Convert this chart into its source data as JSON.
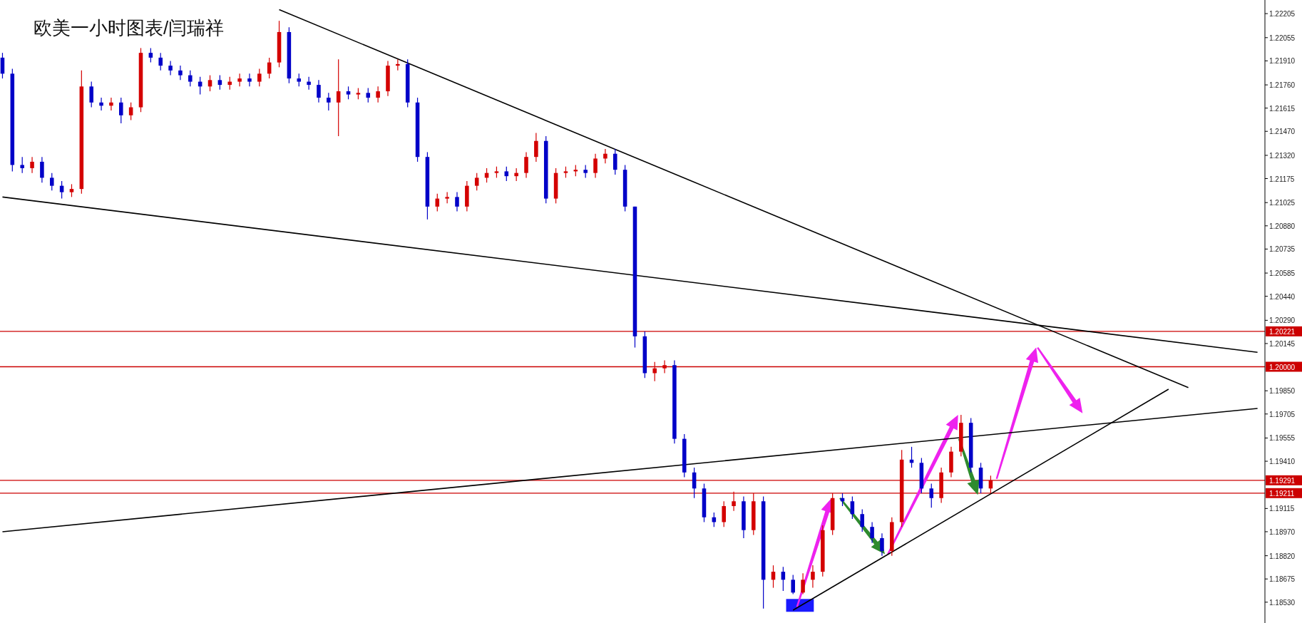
{
  "chart_data": {
    "type": "candlestick",
    "title": "欧美一小时图表/闫瑞祥",
    "tick_labels": "y",
    "categories": [
      null,
      null,
      null,
      null,
      null,
      null,
      null,
      null,
      null,
      null,
      null,
      null,
      null,
      null,
      null,
      null,
      null,
      null,
      null,
      null,
      null,
      null,
      null,
      null,
      null,
      null,
      null,
      null,
      null,
      null,
      null,
      null,
      null,
      null,
      null,
      null,
      null,
      null,
      null,
      null,
      null,
      null,
      null,
      null,
      null,
      null,
      null,
      null,
      null,
      null,
      null,
      null,
      null,
      null,
      null,
      null,
      null,
      null,
      null,
      null,
      null,
      null,
      null,
      null,
      null,
      null,
      null,
      null,
      null,
      null,
      null,
      null,
      null,
      null,
      null,
      null,
      null,
      null,
      null,
      null,
      null,
      null,
      null,
      null,
      null,
      null,
      null,
      null,
      null,
      null,
      null,
      null,
      null,
      null,
      null,
      null,
      null,
      null,
      null,
      null,
      null,
      null,
      null,
      null,
      null,
      null,
      null,
      null,
      null,
      null,
      null,
      null,
      null,
      null,
      null,
      null,
      null,
      null,
      null,
      null,
      null,
      null,
      null,
      null,
      null,
      null,
      null,
      null
    ],
    "ohlc": [
      [
        1.2193,
        1.2196,
        1.218,
        1.2183
      ],
      [
        1.2183,
        1.2186,
        1.2122,
        1.2126
      ],
      [
        1.2126,
        1.2131,
        1.2121,
        1.2124
      ],
      [
        1.2124,
        1.2131,
        1.2121,
        1.2128
      ],
      [
        1.2128,
        1.2131,
        1.2115,
        1.2118
      ],
      [
        1.2118,
        1.2121,
        1.211,
        1.2113
      ],
      [
        1.2113,
        1.2116,
        1.2105,
        1.2109
      ],
      [
        1.2109,
        1.2114,
        1.2106,
        1.2111
      ],
      [
        1.2111,
        1.2185,
        1.2108,
        1.2175
      ],
      [
        1.2175,
        1.2178,
        1.2162,
        1.2165
      ],
      [
        1.2165,
        1.2168,
        1.216,
        1.2163
      ],
      [
        1.2163,
        1.2168,
        1.216,
        1.2165
      ],
      [
        1.2165,
        1.2168,
        1.2152,
        1.2157
      ],
      [
        1.2157,
        1.2165,
        1.2154,
        1.2162
      ],
      [
        1.2162,
        1.2199,
        1.2159,
        1.2196
      ],
      [
        1.2196,
        1.2199,
        1.219,
        1.2193
      ],
      [
        1.2193,
        1.2196,
        1.2185,
        1.2188
      ],
      [
        1.2188,
        1.2191,
        1.2182,
        1.2185
      ],
      [
        1.2185,
        1.2188,
        1.2179,
        1.2182
      ],
      [
        1.2182,
        1.2185,
        1.2175,
        1.2178
      ],
      [
        1.2178,
        1.2181,
        1.217,
        1.2175
      ],
      [
        1.2175,
        1.2182,
        1.2172,
        1.2179
      ],
      [
        1.2179,
        1.2182,
        1.2173,
        1.2176
      ],
      [
        1.2176,
        1.2181,
        1.2173,
        1.2178
      ],
      [
        1.2178,
        1.2183,
        1.2175,
        1.218
      ],
      [
        1.218,
        1.2183,
        1.2175,
        1.2178
      ],
      [
        1.2178,
        1.2186,
        1.2175,
        1.2183
      ],
      [
        1.2183,
        1.2193,
        1.218,
        1.219
      ],
      [
        1.219,
        1.2216,
        1.2187,
        1.2209
      ],
      [
        1.2209,
        1.2212,
        1.2177,
        1.218
      ],
      [
        1.218,
        1.2183,
        1.2175,
        1.2178
      ],
      [
        1.2178,
        1.2181,
        1.2173,
        1.2176
      ],
      [
        1.2176,
        1.2179,
        1.2165,
        1.2168
      ],
      [
        1.2168,
        1.2171,
        1.216,
        1.2165
      ],
      [
        1.2165,
        1.2192,
        1.2144,
        1.2172
      ],
      [
        1.2172,
        1.2175,
        1.2167,
        1.217
      ],
      [
        1.217,
        1.2174,
        1.2167,
        1.2171
      ],
      [
        1.2171,
        1.2174,
        1.2165,
        1.2168
      ],
      [
        1.2168,
        1.2175,
        1.2165,
        1.2172
      ],
      [
        1.2172,
        1.2191,
        1.2169,
        1.2188
      ],
      [
        1.2188,
        1.2192,
        1.2185,
        1.2189
      ],
      [
        1.2189,
        1.2192,
        1.2162,
        1.2165
      ],
      [
        1.2165,
        1.2168,
        1.2128,
        1.2131
      ],
      [
        1.2131,
        1.2134,
        1.2092,
        1.21
      ],
      [
        1.21,
        1.2108,
        1.2097,
        1.2105
      ],
      [
        1.2105,
        1.2109,
        1.2102,
        1.2106
      ],
      [
        1.2106,
        1.2109,
        1.2097,
        1.21
      ],
      [
        1.21,
        1.2116,
        1.2097,
        1.2113
      ],
      [
        1.2113,
        1.2121,
        1.211,
        1.2118
      ],
      [
        1.2118,
        1.2124,
        1.2115,
        1.2121
      ],
      [
        1.2121,
        1.2125,
        1.2118,
        1.2122
      ],
      [
        1.2122,
        1.2125,
        1.2116,
        1.2119
      ],
      [
        1.2119,
        1.2124,
        1.2116,
        1.2121
      ],
      [
        1.2121,
        1.2134,
        1.2118,
        1.2131
      ],
      [
        1.2131,
        1.2146,
        1.2128,
        1.2141
      ],
      [
        1.2141,
        1.2144,
        1.2102,
        1.2105
      ],
      [
        1.2105,
        1.2124,
        1.2102,
        1.2121
      ],
      [
        1.2121,
        1.2125,
        1.2118,
        1.2122
      ],
      [
        1.2122,
        1.2126,
        1.2119,
        1.2123
      ],
      [
        1.2123,
        1.2126,
        1.2118,
        1.2121
      ],
      [
        1.2121,
        1.2133,
        1.2118,
        1.213
      ],
      [
        1.213,
        1.2136,
        1.2127,
        1.2133
      ],
      [
        1.2133,
        1.2136,
        1.212,
        1.2123
      ],
      [
        1.2123,
        1.2126,
        1.2097,
        1.21
      ],
      [
        1.21,
        1.21,
        1.2012,
        1.2019
      ],
      [
        1.2019,
        1.2022,
        1.1993,
        1.1996
      ],
      [
        1.1996,
        1.2003,
        1.1991,
        1.1999
      ],
      [
        1.1999,
        1.2004,
        1.1996,
        1.2001
      ],
      [
        1.2001,
        1.2004,
        1.1952,
        1.1955
      ],
      [
        1.1955,
        1.1958,
        1.1931,
        1.1934
      ],
      [
        1.1934,
        1.1937,
        1.1918,
        1.1924
      ],
      [
        1.1924,
        1.1927,
        1.1903,
        1.1906
      ],
      [
        1.1906,
        1.1909,
        1.19,
        1.1903
      ],
      [
        1.1903,
        1.1916,
        1.19,
        1.1913
      ],
      [
        1.1913,
        1.1922,
        1.191,
        1.1916
      ],
      [
        1.1916,
        1.1919,
        1.1893,
        1.1898
      ],
      [
        1.1898,
        1.1921,
        1.1895,
        1.1916
      ],
      [
        1.1916,
        1.1919,
        1.1849,
        1.1867
      ],
      [
        1.1867,
        1.1876,
        1.1862,
        1.1872
      ],
      [
        1.1872,
        1.1875,
        1.186,
        1.1867
      ],
      [
        1.1867,
        1.187,
        1.1858,
        1.1859
      ],
      [
        1.1859,
        1.1871,
        1.1858,
        1.1867
      ],
      [
        1.1867,
        1.1876,
        1.1862,
        1.1872
      ],
      [
        1.1872,
        1.1901,
        1.1869,
        1.1898
      ],
      [
        1.1898,
        1.1921,
        1.1895,
        1.1918
      ],
      [
        1.1918,
        1.1921,
        1.1913,
        1.1916
      ],
      [
        1.1916,
        1.1919,
        1.1905,
        1.1908
      ],
      [
        1.1908,
        1.1911,
        1.1897,
        1.19
      ],
      [
        1.19,
        1.1903,
        1.189,
        1.1893
      ],
      [
        1.1893,
        1.1896,
        1.1882,
        1.1885
      ],
      [
        1.1885,
        1.1906,
        1.1882,
        1.1903
      ],
      [
        1.1903,
        1.1948,
        1.19,
        1.1942
      ],
      [
        1.1942,
        1.195,
        1.1937,
        1.194
      ],
      [
        1.194,
        1.1943,
        1.1921,
        1.1924
      ],
      [
        1.1924,
        1.1927,
        1.1912,
        1.1918
      ],
      [
        1.1918,
        1.1937,
        1.1915,
        1.1934
      ],
      [
        1.1934,
        1.195,
        1.1931,
        1.1947
      ],
      [
        1.1947,
        1.197,
        1.1944,
        1.1965
      ],
      [
        1.1965,
        1.1968,
        1.1934,
        1.1937
      ],
      [
        1.1937,
        1.194,
        1.1921,
        1.1924
      ],
      [
        1.1924,
        1.1932,
        1.1921,
        1.1929
      ],
      null,
      null,
      null,
      null,
      null,
      null,
      null,
      null,
      null,
      null,
      null,
      null,
      null,
      null,
      null,
      null,
      null,
      null,
      null,
      null,
      null,
      null,
      null,
      null,
      null,
      null,
      null
    ],
    "colors": [
      "#0000c8",
      "#0000c8",
      "#0000c8",
      "#d40000",
      "#0000c8",
      "#0000c8",
      "#0000c8",
      "#d40000",
      "#d40000",
      "#0000c8",
      "#0000c8",
      "#d40000",
      "#0000c8",
      "#d40000",
      "#d40000",
      "#0000c8",
      "#0000c8",
      "#0000c8",
      "#0000c8",
      "#0000c8",
      "#0000c8",
      "#d40000",
      "#0000c8",
      "#d40000",
      "#d40000",
      "#0000c8",
      "#d40000",
      "#d40000",
      "#d40000",
      "#0000c8",
      "#0000c8",
      "#0000c8",
      "#0000c8",
      "#0000c8",
      "#d40000",
      "#0000c8",
      "#d40000",
      "#0000c8",
      "#d40000",
      "#d40000",
      "#d40000",
      "#0000c8",
      "#0000c8",
      "#0000c8",
      "#d40000",
      "#d40000",
      "#0000c8",
      "#d40000",
      "#d40000",
      "#d40000",
      "#d40000",
      "#0000c8",
      "#d40000",
      "#d40000",
      "#d40000",
      "#0000c8",
      "#d40000",
      "#d40000",
      "#d40000",
      "#0000c8",
      "#d40000",
      "#d40000",
      "#0000c8",
      "#0000c8",
      "#0000c8",
      "#0000c8",
      "#d40000",
      "#d40000",
      "#0000c8",
      "#0000c8",
      "#0000c8",
      "#0000c8",
      "#0000c8",
      "#d40000",
      "#d40000",
      "#0000c8",
      "#d40000",
      "#0000c8",
      "#d40000",
      "#0000c8",
      "#0000c8",
      "#d40000",
      "#d40000",
      "#d40000",
      "#d40000",
      "#0000c8",
      "#0000c8",
      "#0000c8",
      "#0000c8",
      "#0000c8",
      "#d40000",
      "#d40000",
      "#0000c8",
      "#0000c8",
      "#0000c8",
      "#d40000",
      "#d40000",
      "#d40000",
      "#0000c8",
      "#0000c8",
      "#d40000",
      null,
      null,
      null,
      null,
      null,
      null,
      null,
      null,
      null,
      null,
      null,
      null,
      null,
      null,
      null,
      null,
      null,
      null,
      null,
      null,
      null,
      null,
      null,
      null,
      null,
      null,
      null
    ],
    "series": [
      {
        "type": "line",
        "color": "#000000",
        "values": [
          null,
          null,
          null,
          null,
          null,
          null,
          null,
          null,
          null,
          null,
          null,
          null,
          null,
          null,
          null,
          null,
          null,
          null,
          null,
          null,
          null,
          null,
          null,
          null,
          null,
          null,
          null,
          null,
          1.2223,
          null,
          null,
          null,
          null,
          null,
          null,
          null,
          null,
          null,
          null,
          null,
          null,
          null,
          null,
          null,
          null,
          null,
          null,
          null,
          null,
          null,
          null,
          null,
          null,
          null,
          null,
          null,
          null,
          null,
          null,
          null,
          null,
          null,
          null,
          null,
          null,
          null,
          null,
          null,
          null,
          null,
          null,
          null,
          null,
          null,
          null,
          null,
          null,
          null,
          null,
          null,
          null,
          null,
          null,
          null,
          null,
          null,
          null,
          null,
          null,
          null,
          null,
          null,
          null,
          null,
          null,
          null,
          null,
          null,
          null,
          null,
          null,
          null,
          null,
          null,
          null,
          null,
          null,
          null,
          null,
          null,
          null,
          null,
          null,
          null,
          null,
          null,
          null,
          null,
          null,
          null,
          1.1987,
          null,
          null,
          null,
          null,
          null,
          null,
          null
        ]
      },
      {
        "type": "line",
        "color": "#000000",
        "values": [
          1.2106,
          null,
          null,
          null,
          null,
          null,
          null,
          null,
          null,
          null,
          null,
          null,
          null,
          null,
          null,
          null,
          null,
          null,
          null,
          null,
          null,
          null,
          null,
          null,
          null,
          null,
          null,
          null,
          null,
          null,
          null,
          null,
          null,
          null,
          null,
          null,
          null,
          null,
          null,
          null,
          null,
          null,
          null,
          null,
          null,
          null,
          null,
          null,
          null,
          null,
          null,
          null,
          null,
          null,
          null,
          null,
          null,
          null,
          null,
          null,
          null,
          null,
          null,
          null,
          null,
          null,
          null,
          null,
          null,
          null,
          null,
          null,
          null,
          null,
          null,
          null,
          null,
          null,
          null,
          null,
          null,
          null,
          null,
          null,
          null,
          null,
          null,
          null,
          null,
          null,
          null,
          null,
          null,
          null,
          null,
          null,
          null,
          null,
          null,
          null,
          null,
          null,
          null,
          null,
          null,
          null,
          null,
          null,
          null,
          null,
          null,
          null,
          null,
          null,
          null,
          null,
          null,
          null,
          null,
          null,
          null,
          null,
          null,
          null,
          null,
          null,
          null,
          1.2009
        ]
      },
      {
        "type": "line",
        "color": "#000000",
        "values": [
          1.1897,
          null,
          null,
          null,
          null,
          null,
          null,
          null,
          null,
          null,
          null,
          null,
          null,
          null,
          null,
          null,
          null,
          null,
          null,
          null,
          null,
          null,
          null,
          null,
          null,
          null,
          null,
          null,
          null,
          null,
          null,
          null,
          null,
          null,
          null,
          null,
          null,
          null,
          null,
          null,
          null,
          null,
          null,
          null,
          null,
          null,
          null,
          null,
          null,
          null,
          null,
          null,
          null,
          null,
          null,
          null,
          null,
          null,
          null,
          null,
          null,
          null,
          null,
          null,
          null,
          null,
          null,
          null,
          null,
          null,
          null,
          null,
          null,
          null,
          null,
          null,
          null,
          null,
          null,
          null,
          null,
          null,
          null,
          null,
          null,
          null,
          null,
          null,
          null,
          null,
          null,
          null,
          null,
          null,
          null,
          null,
          null,
          null,
          null,
          null,
          null,
          null,
          null,
          null,
          null,
          null,
          null,
          null,
          null,
          null,
          null,
          null,
          null,
          null,
          null,
          null,
          null,
          null,
          null,
          null,
          null,
          null,
          null,
          null,
          null,
          null,
          null,
          1.1974
        ]
      },
      {
        "type": "line",
        "color": "#000000",
        "values": [
          null,
          null,
          null,
          null,
          null,
          null,
          null,
          null,
          null,
          null,
          null,
          null,
          null,
          null,
          null,
          null,
          null,
          null,
          null,
          null,
          null,
          null,
          null,
          null,
          null,
          null,
          null,
          null,
          null,
          null,
          null,
          null,
          null,
          null,
          null,
          null,
          null,
          null,
          null,
          null,
          null,
          null,
          null,
          null,
          null,
          null,
          null,
          null,
          null,
          null,
          null,
          null,
          null,
          null,
          null,
          null,
          null,
          null,
          null,
          null,
          null,
          null,
          null,
          null,
          null,
          null,
          null,
          null,
          null,
          null,
          null,
          null,
          null,
          null,
          null,
          null,
          null,
          null,
          null,
          null,
          1.1848,
          null,
          null,
          null,
          null,
          null,
          null,
          null,
          null,
          null,
          null,
          null,
          null,
          null,
          null,
          null,
          null,
          null,
          null,
          null,
          null,
          null,
          null,
          null,
          null,
          null,
          null,
          null,
          null,
          null,
          null,
          null,
          null,
          null,
          null,
          null,
          null,
          null,
          1.1986,
          null,
          null,
          null,
          null,
          null,
          null,
          null,
          null,
          null
        ]
      }
    ],
    "ylim": [
      1.184,
      1.2229
    ],
    "yticks": [
      {
        "value": 1.22205,
        "label": "1.22205"
      },
      {
        "value": 1.22055,
        "label": "1.22055"
      },
      {
        "value": 1.2191,
        "label": "1.21910"
      },
      {
        "value": 1.2176,
        "label": "1.21760"
      },
      {
        "value": 1.21615,
        "label": "1.21615"
      },
      {
        "value": 1.2147,
        "label": "1.21470"
      },
      {
        "value": 1.2132,
        "label": "1.21320"
      },
      {
        "value": 1.21175,
        "label": "1.21175"
      },
      {
        "value": 1.21025,
        "label": "1.21025"
      },
      {
        "value": 1.2088,
        "label": "1.20880"
      },
      {
        "value": 1.20735,
        "label": "1.20735"
      },
      {
        "value": 1.20585,
        "label": "1.20585"
      },
      {
        "value": 1.2044,
        "label": "1.20440"
      },
      {
        "value": 1.2029,
        "label": "1.20290"
      },
      {
        "value": 1.20145,
        "label": "1.20145"
      },
      {
        "value": 1.1985,
        "label": "1.19850"
      },
      {
        "value": 1.19705,
        "label": "1.19705"
      },
      {
        "value": 1.19555,
        "label": "1.19555"
      },
      {
        "value": 1.1941,
        "label": "1.19410"
      },
      {
        "value": 1.19115,
        "label": "1.19115"
      },
      {
        "value": 1.1897,
        "label": "1.18970"
      },
      {
        "value": 1.1882,
        "label": "1.18820"
      },
      {
        "value": 1.18675,
        "label": "1.18675"
      },
      {
        "value": 1.1853,
        "label": "1.18530"
      }
    ],
    "ref_lines": [
      {
        "axis": "y",
        "value": 1.20221,
        "label": "1.20221",
        "color": "#cc0000"
      },
      {
        "axis": "y",
        "value": 1.2,
        "label": "1.20000",
        "color": "#cc0000"
      },
      {
        "axis": "y",
        "value": 1.19291,
        "label": "1.19291",
        "color": "#cc0000"
      },
      {
        "axis": "y",
        "value": 1.19211,
        "label": "1.19211",
        "color": "#cc0000"
      }
    ]
  }
}
